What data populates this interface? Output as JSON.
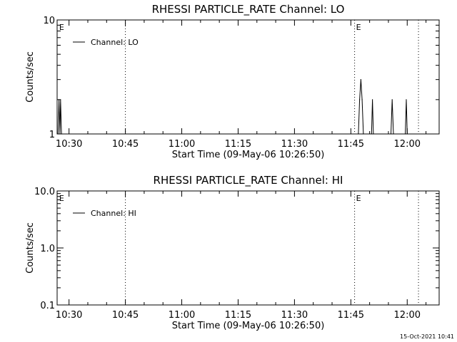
{
  "footer_timestamp": "15-Oct-2021 10:41",
  "chart_data": [
    {
      "type": "line",
      "title": "RHESSI PARTICLE_RATE Channel: LO",
      "xlabel": "Start Time (09-May-06 10:26:50)",
      "ylabel": "Counts/sec",
      "yscale": "log",
      "ylim": [
        1,
        10
      ],
      "y_ticks": [
        {
          "value": 1,
          "label": "1"
        },
        {
          "value": 10,
          "label": "10"
        }
      ],
      "xlim": [
        "10:26:50",
        "12:08:30"
      ],
      "x_ticks": [
        "10:30",
        "10:45",
        "11:00",
        "11:15",
        "11:30",
        "11:45",
        "12:00"
      ],
      "vlines": [
        "10:45",
        "11:46",
        "12:03"
      ],
      "event_markers": [
        {
          "x": "10:27",
          "label": "E"
        },
        {
          "x": "11:46",
          "label": "E"
        }
      ],
      "legend": {
        "label": "Channel: LO",
        "position": "top-left"
      },
      "series": [
        {
          "name": "Channel: LO",
          "points": [
            {
              "x": "10:27:05",
              "y": 1
            },
            {
              "x": "10:27:20",
              "y": 2
            },
            {
              "x": "10:27:35",
              "y": 1
            },
            {
              "x": "10:27:45",
              "y": 2
            },
            {
              "x": "10:28:00",
              "y": 1
            },
            {
              "x": "11:47:00",
              "y": 1
            },
            {
              "x": "11:47:20",
              "y": 2
            },
            {
              "x": "11:47:40",
              "y": 3
            },
            {
              "x": "11:48:00",
              "y": 2
            },
            {
              "x": "11:48:20",
              "y": 1
            },
            {
              "x": "11:50:30",
              "y": 1
            },
            {
              "x": "11:50:45",
              "y": 2
            },
            {
              "x": "11:51:00",
              "y": 1
            },
            {
              "x": "11:55:40",
              "y": 1
            },
            {
              "x": "11:56:00",
              "y": 2
            },
            {
              "x": "11:56:20",
              "y": 1
            },
            {
              "x": "11:59:30",
              "y": 1
            },
            {
              "x": "11:59:45",
              "y": 2
            },
            {
              "x": "12:00:00",
              "y": 1
            }
          ]
        }
      ]
    },
    {
      "type": "line",
      "title": "RHESSI PARTICLE_RATE Channel: HI",
      "xlabel": "Start Time (09-May-06 10:26:50)",
      "ylabel": "Counts/sec",
      "yscale": "log",
      "ylim": [
        0.1,
        10
      ],
      "y_ticks": [
        {
          "value": 0.1,
          "label": "0.1"
        },
        {
          "value": 1,
          "label": "1.0"
        },
        {
          "value": 10,
          "label": "10.0"
        }
      ],
      "xlim": [
        "10:26:50",
        "12:08:30"
      ],
      "x_ticks": [
        "10:30",
        "10:45",
        "11:00",
        "11:15",
        "11:30",
        "11:45",
        "12:00"
      ],
      "vlines": [
        "10:45",
        "11:46",
        "12:03"
      ],
      "event_markers": [
        {
          "x": "10:27",
          "label": "E"
        },
        {
          "x": "11:46",
          "label": "E"
        }
      ],
      "legend": {
        "label": "Channel: HI",
        "position": "top-left"
      },
      "series": [
        {
          "name": "Channel: HI",
          "points": []
        }
      ]
    }
  ]
}
